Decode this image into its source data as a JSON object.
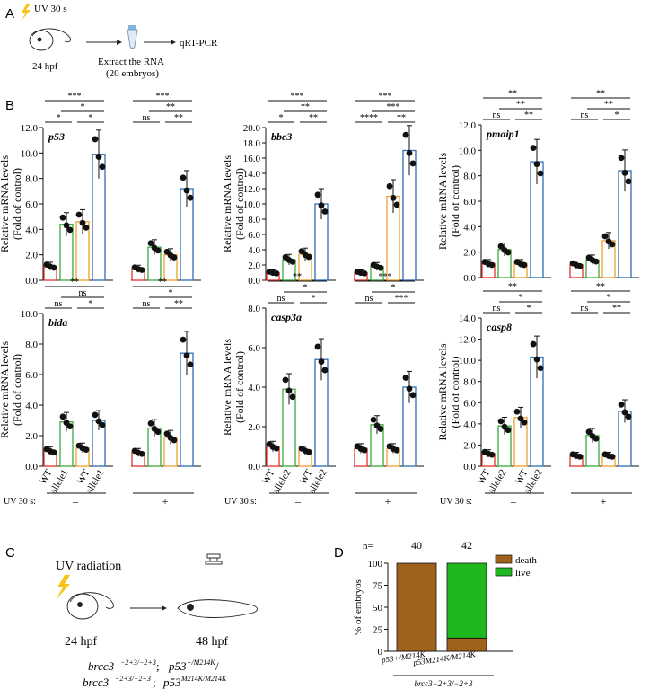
{
  "panels": {
    "A": "A",
    "B": "B",
    "C": "C",
    "D": "D"
  },
  "panel_a": {
    "uv": "UV 30 s",
    "stage": "24 hpf",
    "extract": "Extract the RNA",
    "embryos": "(20 embryos)",
    "assay": "qRT-PCR"
  },
  "ylabel1": "Relative mRNA levels",
  "ylabel2": "(Fold of control)",
  "uv_row_label": "UV 30 s:",
  "uv_minus": "–",
  "uv_plus": "+",
  "groups_row1": [
    "WT",
    "allele1",
    "WT",
    "allele1"
  ],
  "groups_row2": [
    "WT",
    "allele2",
    "WT",
    "allele2"
  ],
  "colors": {
    "red": "#e8332d",
    "green": "#3cab3c",
    "orange": "#f0a030",
    "blue": "#2f6db5",
    "death": "#a0611d",
    "live": "#1fb81f"
  },
  "chart_data": [
    {
      "type": "bar",
      "gene": "p53",
      "ylim": [
        0,
        12
      ],
      "yticks": [
        "0.0",
        "2.0",
        "4.0",
        "6.0",
        "8.0",
        "10.0",
        "12.0"
      ],
      "values": [
        1.1,
        4.4,
        4.6,
        9.9,
        0.9,
        2.6,
        2.0,
        7.2
      ],
      "sig_left": [
        "***",
        "*",
        "*",
        "*"
      ],
      "sig_right": [
        "***",
        "**",
        "ns",
        "**"
      ]
    },
    {
      "type": "bar",
      "gene": "bbc3",
      "ylim": [
        0,
        20
      ],
      "yticks": [
        "0.0",
        "2.0",
        "4.0",
        "6.0",
        "8.0",
        "10.0",
        "12.0",
        "14.0",
        "16.0",
        "18.0",
        "20.0"
      ],
      "values": [
        1.0,
        2.7,
        3.4,
        10.0,
        1.0,
        1.8,
        11.0,
        17.0
      ],
      "sig_left": [
        "***",
        "**",
        "*",
        "**"
      ],
      "sig_right": [
        "***",
        "***",
        "****",
        "**"
      ]
    },
    {
      "type": "bar",
      "gene": "pmaip1",
      "ylim": [
        0,
        12
      ],
      "yticks": [
        "0.0",
        "2.0",
        "4.0",
        "6.0",
        "8.0",
        "10.0",
        "12.0"
      ],
      "values": [
        1.1,
        2.2,
        1.1,
        9.1,
        1.0,
        1.4,
        2.9,
        8.4
      ],
      "sig_left": [
        "**",
        "**",
        "ns",
        "**"
      ],
      "sig_right": [
        "**",
        "**",
        "ns",
        "*"
      ]
    },
    {
      "type": "bar",
      "gene": "bida",
      "ylim": [
        0,
        10
      ],
      "yticks": [
        "0.0",
        "2.0",
        "4.0",
        "6.0",
        "8.0",
        "10.0"
      ],
      "values": [
        1.0,
        2.9,
        1.2,
        3.0,
        0.9,
        2.5,
        1.9,
        7.4
      ],
      "sig_left": [
        "**",
        "ns",
        "ns",
        "*"
      ],
      "sig_right": [
        "**",
        "*",
        "ns",
        "**"
      ]
    },
    {
      "type": "bar",
      "gene": "casp3a",
      "ylim": [
        0,
        8
      ],
      "yticks": [
        "0.0",
        "2.0",
        "4.0",
        "6.0",
        "8.0"
      ],
      "values": [
        1.0,
        3.9,
        0.8,
        5.4,
        0.9,
        2.1,
        0.9,
        4.0
      ],
      "sig_left": [
        "**",
        "*",
        "ns",
        "*"
      ],
      "sig_right": [
        "***",
        "*",
        "ns",
        "***"
      ]
    },
    {
      "type": "bar",
      "gene": "casp8",
      "ylim": [
        0,
        14
      ],
      "yticks": [
        "0.0",
        "2.0",
        "4.0",
        "6.0",
        "8.0",
        "10.0",
        "12.0",
        "14.0"
      ],
      "values": [
        1.2,
        3.8,
        4.6,
        10.3,
        1.0,
        2.9,
        1.0,
        5.2
      ],
      "sig_left": [
        "**",
        "*",
        "ns",
        "*"
      ],
      "sig_right": [
        "**",
        "*",
        "ns",
        "**"
      ]
    },
    {
      "type": "bar",
      "stacked": true,
      "ylabel": "% of embryos",
      "ylim": [
        0,
        100
      ],
      "yticks": [
        "0",
        "25",
        "50",
        "75",
        "100"
      ],
      "n_label": "n=",
      "n": [
        "40",
        "42"
      ],
      "categories": [
        "p53+/M214K",
        "p53M214K/M214K"
      ],
      "series": [
        {
          "name": "death",
          "values": [
            100,
            15
          ]
        },
        {
          "name": "live",
          "values": [
            0,
            85
          ]
        }
      ],
      "group_label": "brcc3−2+3/−2+3"
    }
  ],
  "panel_c": {
    "uv": "UV radiation",
    "stage1": "24 hpf",
    "stage2": "48 hpf",
    "geno1a": "brcc3",
    "geno1a_sup": "−2+3/−2+3",
    "sep": ";",
    "geno1b": "p53",
    "geno1b_sup": "+/M214K",
    "slash": "/",
    "geno2a": "brcc3",
    "geno2a_sup": "−2+3/−2+3",
    "geno2b": "p53",
    "geno2b_sup": "M214K/M214K"
  }
}
